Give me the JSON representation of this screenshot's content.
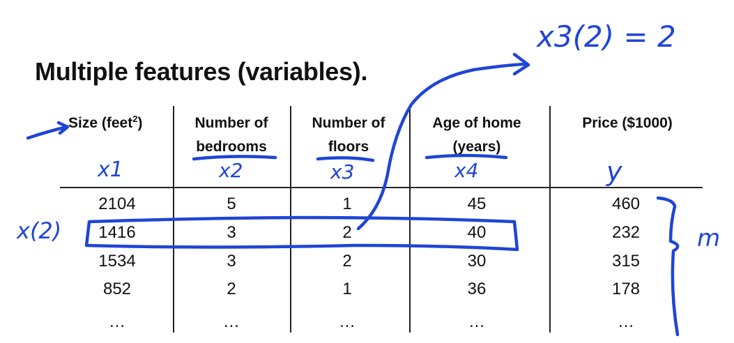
{
  "title": "Multiple features (variables).",
  "headers": [
    {
      "line1": "Size (feet",
      "sup": "2",
      "line1_end": ")",
      "line2": ""
    },
    {
      "line1": "Number of",
      "line2": "bedrooms"
    },
    {
      "line1": "Number of",
      "line2": "floors"
    },
    {
      "line1": "Age of home",
      "line2": "(years)"
    },
    {
      "line1": "Price ($1000)",
      "line2": ""
    }
  ],
  "rows": [
    [
      "2104",
      "5",
      "1",
      "45",
      "460"
    ],
    [
      "1416",
      "3",
      "2",
      "40",
      "232"
    ],
    [
      "1534",
      "3",
      "2",
      "30",
      "315"
    ],
    [
      "852",
      "2",
      "1",
      "36",
      "178"
    ],
    [
      "…",
      "…",
      "…",
      "…",
      "…"
    ]
  ],
  "annotations": {
    "feature_labels": [
      "x1",
      "x2",
      "x3",
      "x4",
      "y"
    ],
    "row_label": "x(2)",
    "formula": "x3(2) = 2",
    "count_label": "m"
  },
  "colors": {
    "ink": "#1f45d6",
    "text": "#111111"
  }
}
